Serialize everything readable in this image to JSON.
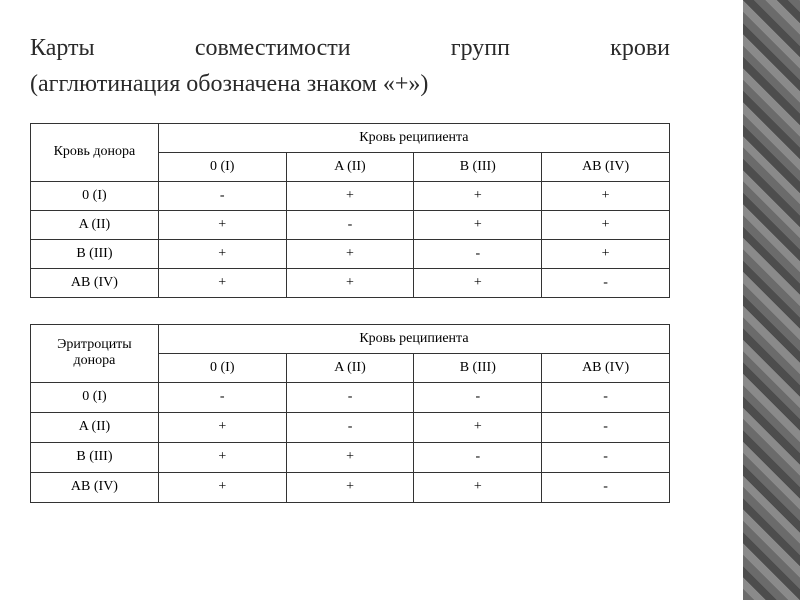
{
  "title_line1": "Карты совместимости групп крови",
  "title_line2": "(агглютинация обозначена знаком «+»)",
  "table1": {
    "donor_header": "Кровь донора",
    "recipient_header": "Кровь реципиента",
    "groups": [
      "0 (I)",
      "A (II)",
      "B (III)",
      "AB (IV)"
    ],
    "rows": [
      {
        "label": "0 (I)",
        "cells": [
          "-",
          "+",
          "+",
          "+"
        ]
      },
      {
        "label": "A (II)",
        "cells": [
          "+",
          "-",
          "+",
          "+"
        ]
      },
      {
        "label": "B (III)",
        "cells": [
          "+",
          "+",
          "-",
          "+"
        ]
      },
      {
        "label": "AB (IV)",
        "cells": [
          "+",
          "+",
          "+",
          "-"
        ]
      }
    ]
  },
  "table2": {
    "donor_header_line1": "Эритроциты",
    "donor_header_line2": "донора",
    "recipient_header": "Кровь реципиента",
    "groups": [
      "0 (I)",
      "A (II)",
      "B (III)",
      "AB (IV)"
    ],
    "rows": [
      {
        "label": "0 (I)",
        "cells": [
          "-",
          "-",
          "-",
          "-"
        ]
      },
      {
        "label": "A (II)",
        "cells": [
          "+",
          "-",
          "+",
          "-"
        ]
      },
      {
        "label": "B (III)",
        "cells": [
          "+",
          "+",
          "-",
          "-"
        ]
      },
      {
        "label": "AB (IV)",
        "cells": [
          "+",
          "+",
          "+",
          "-"
        ]
      }
    ]
  },
  "colors": {
    "text": "#2a2a2a",
    "border": "#333333",
    "background": "#ffffff"
  }
}
